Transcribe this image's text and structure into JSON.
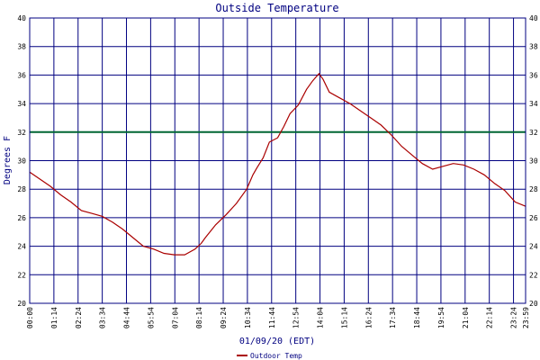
{
  "chart_data": {
    "type": "line",
    "title": "Outside Temperature",
    "xlabel": "01/09/20 (EDT)",
    "ylabel": "Degrees F",
    "ylim": [
      20,
      40
    ],
    "y_ticks": [
      "20",
      "22",
      "24",
      "26",
      "28",
      "30",
      "32",
      "34",
      "36",
      "38",
      "40"
    ],
    "x_ticks": [
      "00:00",
      "01:14",
      "02:24",
      "03:34",
      "04:44",
      "05:54",
      "07:04",
      "08:14",
      "09:24",
      "10:34",
      "11:44",
      "12:54",
      "14:04",
      "15:14",
      "16:24",
      "17:34",
      "18:44",
      "19:54",
      "21:04",
      "22:14",
      "23:24"
    ],
    "x_tick_end_overlap": "23:59",
    "grid": true,
    "colors": {
      "grid": "#000080",
      "line": "#aa0000",
      "reference": "#006633",
      "text": "#000080"
    },
    "reference_line": {
      "y": 32
    },
    "legend": "bottom",
    "series": [
      {
        "name": "Outdoor Temp",
        "x": [
          0,
          0.5,
          1.0,
          1.5,
          2.0,
          2.5,
          3.0,
          3.5,
          4.0,
          4.5,
          5.0,
          5.5,
          6.0,
          6.5,
          7.0,
          7.5,
          8.0,
          8.3,
          8.5,
          9.0,
          9.5,
          10.0,
          10.5,
          10.8,
          11.0,
          11.3,
          11.6,
          12.0,
          12.3,
          12.6,
          13.0,
          13.4,
          13.7,
          14.0,
          14.2,
          14.5,
          15.0,
          15.5,
          16.0,
          16.5,
          17.0,
          17.5,
          18.0,
          18.5,
          19.0,
          19.5,
          20.0,
          20.5,
          21.0,
          21.5,
          22.0,
          22.5,
          23.0,
          23.5,
          24.0
        ],
        "y": [
          29.2,
          28.7,
          28.2,
          27.6,
          27.1,
          26.5,
          26.3,
          26.1,
          25.7,
          25.2,
          24.6,
          24.0,
          23.8,
          23.5,
          23.4,
          23.4,
          23.8,
          24.2,
          24.6,
          25.5,
          26.2,
          27.0,
          28.0,
          29.0,
          29.5,
          30.2,
          31.3,
          31.6,
          32.4,
          33.3,
          33.9,
          35.0,
          35.6,
          36.1,
          35.7,
          34.8,
          34.4,
          34.0,
          33.5,
          33.0,
          32.5,
          31.8,
          31.0,
          30.4,
          29.8,
          29.4,
          29.6,
          29.8,
          29.7,
          29.4,
          29.0,
          28.4,
          27.9,
          27.1,
          26.8
        ]
      }
    ]
  }
}
